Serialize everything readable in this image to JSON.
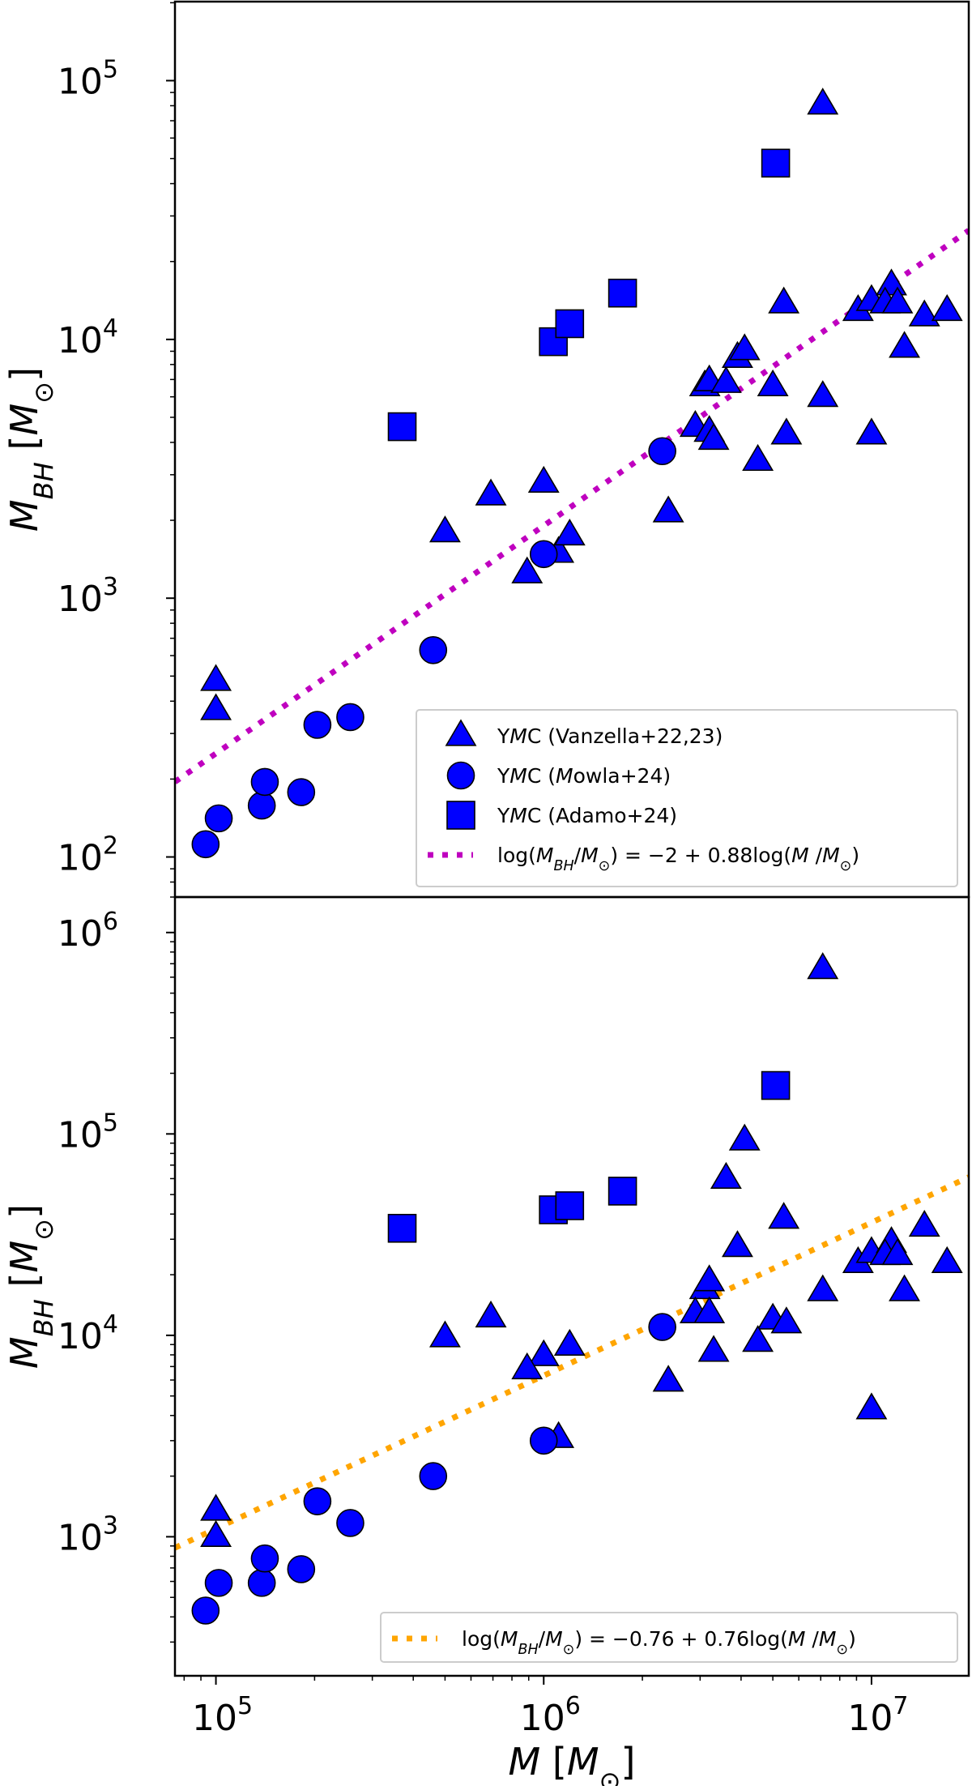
{
  "chart_data": [
    {
      "type": "scatter",
      "xscale": "log",
      "yscale": "log",
      "xlim": [
        75000,
        19800000
      ],
      "ylim": [
        70,
        202000
      ],
      "xlabel": "",
      "ylabel": "M_BH [M_⊙]",
      "yticks": [
        {
          "value": 100,
          "label": "10",
          "exp": "2"
        },
        {
          "value": 1000,
          "label": "10",
          "exp": "3"
        },
        {
          "value": 10000,
          "label": "10",
          "exp": "4"
        },
        {
          "value": 100000,
          "label": "10",
          "exp": "5"
        }
      ],
      "grid": false,
      "legend_placement": "lower-right",
      "series": [
        {
          "name": "YMC (Vanzella+22,23)",
          "marker": "triangle",
          "color": "#0000ff",
          "x": [
            100000,
            100000,
            500000,
            690000,
            1000000,
            890000,
            1110000,
            1200000,
            2400000,
            5400000,
            7100000,
            5000000,
            5500000,
            7100000,
            4500000,
            3100000,
            3200000,
            2900000,
            3200000,
            3300000,
            3600000,
            3900000,
            4100000,
            9100000,
            10000000,
            11500000,
            11000000,
            12000000,
            12600000,
            14500000,
            17000000,
            10000000
          ],
          "y": [
            480,
            370,
            1800,
            2500,
            2800,
            1250,
            1500,
            1750,
            2150,
            13800,
            81000,
            6600,
            4300,
            6000,
            3400,
            6600,
            6900,
            4600,
            4400,
            4100,
            6800,
            8500,
            9100,
            12900,
            14100,
            16200,
            13800,
            13800,
            9300,
            12300,
            12900,
            4300
          ]
        },
        {
          "name": "YMC (Mowla+24)",
          "marker": "circle",
          "color": "#0000ff",
          "x": [
            93000,
            102000,
            138000,
            141000,
            182000,
            204000,
            257000,
            460000,
            1000000,
            2300000
          ],
          "y": [
            112,
            141,
            158,
            195,
            178,
            324,
            347,
            630,
            1480,
            3700
          ]
        },
        {
          "name": "YMC (Adamo+24)",
          "marker": "square",
          "color": "#0000ff",
          "x": [
            370000,
            1070000,
            1200000,
            1740000,
            5100000
          ],
          "y": [
            4600,
            9800,
            11500,
            15100,
            48000
          ]
        },
        {
          "name": "log(M_BH/M_⊙) = −2 + 0.88log(M /M_⊙)",
          "type": "line",
          "style": "dotted",
          "color": "#bf00bf",
          "intercept": -2,
          "slope": 0.88
        }
      ]
    },
    {
      "type": "scatter",
      "xscale": "log",
      "yscale": "log",
      "xlim": [
        75000,
        19800000
      ],
      "ylim": [
        204,
        1500000
      ],
      "xlabel": "M [M_⊙]",
      "ylabel": "M_BH [M_⊙]",
      "xticks": [
        {
          "value": 100000,
          "label": "10",
          "exp": "5"
        },
        {
          "value": 1000000,
          "label": "10",
          "exp": "6"
        },
        {
          "value": 10000000,
          "label": "10",
          "exp": "7"
        }
      ],
      "yticks": [
        {
          "value": 1000,
          "label": "10",
          "exp": "3"
        },
        {
          "value": 10000,
          "label": "10",
          "exp": "4"
        },
        {
          "value": 100000,
          "label": "10",
          "exp": "5"
        },
        {
          "value": 1000000,
          "label": "10",
          "exp": "6"
        }
      ],
      "grid": false,
      "legend_placement": "lower-right",
      "series": [
        {
          "marker": "triangle",
          "color": "#0000ff",
          "x": [
            100000,
            100000,
            500000,
            690000,
            1000000,
            890000,
            1110000,
            1200000,
            2400000,
            5400000,
            7100000,
            5000000,
            5500000,
            7100000,
            4500000,
            3100000,
            3200000,
            2900000,
            3200000,
            3300000,
            3600000,
            3900000,
            4100000,
            9100000,
            10000000,
            11500000,
            11000000,
            12000000,
            12600000,
            14500000,
            17000000,
            10000000
          ],
          "y": [
            1350,
            1000,
            9800,
            12300,
            7900,
            6800,
            3100,
            8900,
            5900,
            38000,
            660000,
            12000,
            11500,
            16600,
            9300,
            17000,
            18600,
            12900,
            12900,
            8300,
            60000,
            27500,
            93000,
            22900,
            25700,
            28800,
            25100,
            25100,
            16600,
            34700,
            22900,
            4300
          ]
        },
        {
          "marker": "circle",
          "color": "#0000ff",
          "x": [
            93000,
            102000,
            138000,
            141000,
            182000,
            204000,
            257000,
            460000,
            1000000,
            2300000
          ],
          "y": [
            430,
            590,
            590,
            780,
            690,
            1500,
            1170,
            2000,
            3000,
            11000
          ]
        },
        {
          "marker": "square",
          "color": "#0000ff",
          "x": [
            370000,
            1070000,
            1200000,
            1740000,
            5100000
          ],
          "y": [
            34000,
            42000,
            44000,
            52000,
            174000
          ]
        },
        {
          "name": "log(M_BH/M_⊙) = −0.76 + 0.76log(M /M_⊙)",
          "type": "line",
          "style": "dotted",
          "color": "#ffa500",
          "intercept": -0.76,
          "slope": 0.76
        }
      ]
    }
  ]
}
